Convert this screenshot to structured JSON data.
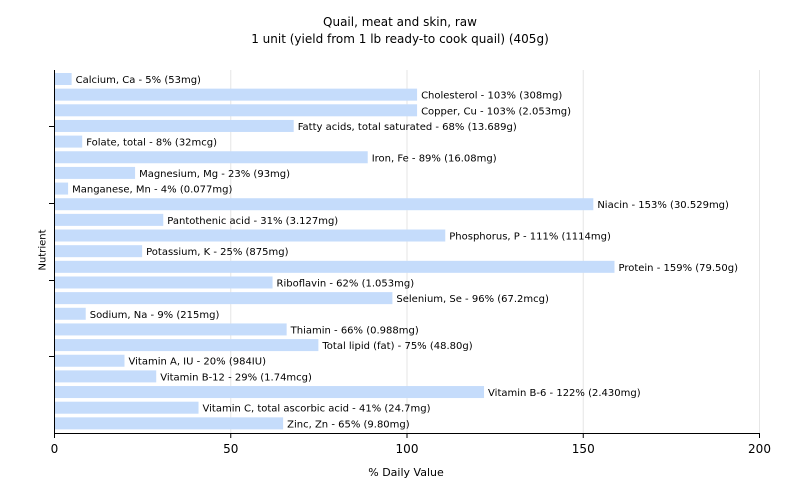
{
  "chart_data": {
    "type": "bar",
    "orientation": "horizontal",
    "title": "Quail, meat and skin, raw",
    "subtitle": "1 unit (yield from 1 lb ready-to cook quail) (405g)",
    "xlabel": "% Daily Value",
    "ylabel": "Nutrient",
    "xlim": [
      0,
      200
    ],
    "xticks": [
      0,
      50,
      100,
      150,
      200
    ],
    "grid": "vertical",
    "bar_color": "#c5dcfb",
    "categories": [
      "Calcium, Ca",
      "Cholesterol",
      "Copper, Cu",
      "Fatty acids, total saturated",
      "Folate, total",
      "Iron, Fe",
      "Magnesium, Mg",
      "Manganese, Mn",
      "Niacin",
      "Pantothenic acid",
      "Phosphorus, P",
      "Potassium, K",
      "Protein",
      "Riboflavin",
      "Selenium, Se",
      "Sodium, Na",
      "Thiamin",
      "Total lipid (fat)",
      "Vitamin A, IU",
      "Vitamin B-12",
      "Vitamin B-6",
      "Vitamin C, total ascorbic acid",
      "Zinc, Zn"
    ],
    "values": [
      5,
      103,
      103,
      68,
      8,
      89,
      23,
      4,
      153,
      31,
      111,
      25,
      159,
      62,
      96,
      9,
      66,
      75,
      20,
      29,
      122,
      41,
      65
    ],
    "labels": [
      "Calcium, Ca - 5% (53mg)",
      "Cholesterol - 103% (308mg)",
      "Copper, Cu - 103% (2.053mg)",
      "Fatty acids, total saturated - 68% (13.689g)",
      "Folate, total - 8% (32mcg)",
      "Iron, Fe - 89% (16.08mg)",
      "Magnesium, Mg - 23% (93mg)",
      "Manganese, Mn - 4% (0.077mg)",
      "Niacin - 153% (30.529mg)",
      "Pantothenic acid - 31% (3.127mg)",
      "Phosphorus, P - 111% (1114mg)",
      "Potassium, K - 25% (875mg)",
      "Protein - 159% (79.50g)",
      "Riboflavin - 62% (1.053mg)",
      "Selenium, Se - 96% (67.2mcg)",
      "Sodium, Na - 9% (215mg)",
      "Thiamin - 66% (0.988mg)",
      "Total lipid (fat) - 75% (48.80g)",
      "Vitamin A, IU - 20% (984IU)",
      "Vitamin B-12 - 29% (1.74mcg)",
      "Vitamin B-6 - 122% (2.430mg)",
      "Vitamin C, total ascorbic acid - 41% (24.7mg)",
      "Zinc, Zn - 65% (9.80mg)"
    ]
  }
}
